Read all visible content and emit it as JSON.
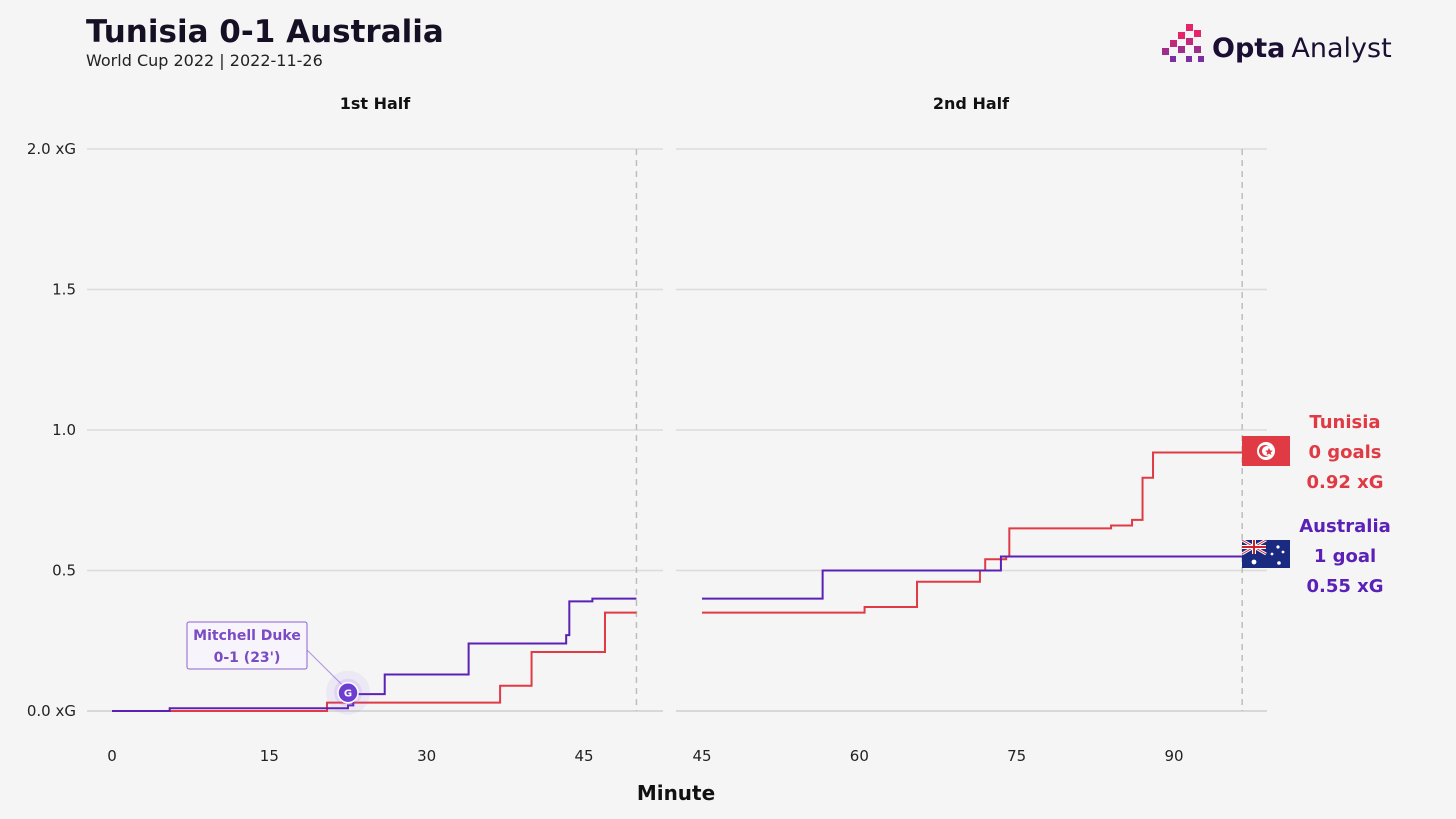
{
  "header": {
    "title": "Tunisia 0-1 Australia",
    "subtitle": "World Cup 2022 | 2022-11-26"
  },
  "brand": {
    "name_bold": "Opta",
    "name_light": "Analyst"
  },
  "chart_data": {
    "type": "line",
    "step": true,
    "xlabel": "Minute",
    "y_tick_labels": [
      "0.0 xG",
      "0.5",
      "1.0",
      "1.5",
      "2.0 xG"
    ],
    "y_ticks": [
      0,
      0.5,
      1.0,
      1.5,
      2.0
    ],
    "ylim": [
      0,
      2.0
    ],
    "grid": true,
    "panels": [
      {
        "title": "1st Half",
        "xlim": [
          0,
          50.5
        ],
        "x_ticks": [
          0,
          15,
          30,
          45
        ],
        "full_time_marker": 50,
        "series": [
          {
            "name": "Tunisia",
            "color": "#e03a45",
            "points": [
              [
                0,
                0
              ],
              [
                20.5,
                0.03
              ],
              [
                37.0,
                0.09
              ],
              [
                40.0,
                0.21
              ],
              [
                47.0,
                0.35
              ],
              [
                50.0,
                0.35
              ]
            ]
          },
          {
            "name": "Australia",
            "color": "#5b21b6",
            "points": [
              [
                0,
                0
              ],
              [
                5.5,
                0.01
              ],
              [
                22.5,
                0.02
              ],
              [
                23.0,
                0.06
              ],
              [
                24.0,
                0.06
              ],
              [
                26.0,
                0.13
              ],
              [
                34.0,
                0.24
              ],
              [
                43.0,
                0.24
              ],
              [
                43.3,
                0.27
              ],
              [
                43.6,
                0.39
              ],
              [
                45.8,
                0.4
              ],
              [
                50.0,
                0.4
              ]
            ]
          }
        ],
        "annotations": [
          {
            "player": "Mitchell Duke",
            "detail": "0-1 (23')",
            "marker": "G",
            "x": 22.5,
            "y": 0.065,
            "team": "Australia"
          }
        ]
      },
      {
        "title": "2nd Half",
        "xlim": [
          45,
          97
        ],
        "x_ticks": [
          45,
          60,
          75,
          90
        ],
        "full_time_marker": 96.5,
        "series": [
          {
            "name": "Tunisia",
            "color": "#e03a45",
            "points": [
              [
                45,
                0.35
              ],
              [
                60.5,
                0.37
              ],
              [
                65.5,
                0.46
              ],
              [
                71.5,
                0.5
              ],
              [
                72.0,
                0.54
              ],
              [
                74.0,
                0.55
              ],
              [
                74.3,
                0.65
              ],
              [
                84.0,
                0.66
              ],
              [
                86.0,
                0.68
              ],
              [
                87.0,
                0.83
              ],
              [
                88.0,
                0.92
              ],
              [
                96.5,
                0.92
              ]
            ]
          },
          {
            "name": "Australia",
            "color": "#5b21b6",
            "points": [
              [
                45,
                0.4
              ],
              [
                56.5,
                0.5
              ],
              [
                73.5,
                0.55
              ],
              [
                96.5,
                0.55
              ]
            ]
          }
        ]
      }
    ]
  },
  "teams": [
    {
      "key": "tunisia",
      "name": "Tunisia",
      "goals": "0 goals",
      "xg": "0.92 xG",
      "color": "#e03a45",
      "flag": "tunisia-flag"
    },
    {
      "key": "australia",
      "name": "Australia",
      "goals": "1 goal",
      "xg": "0.55 xG",
      "color": "#5b21b6",
      "flag": "australia-flag"
    }
  ]
}
